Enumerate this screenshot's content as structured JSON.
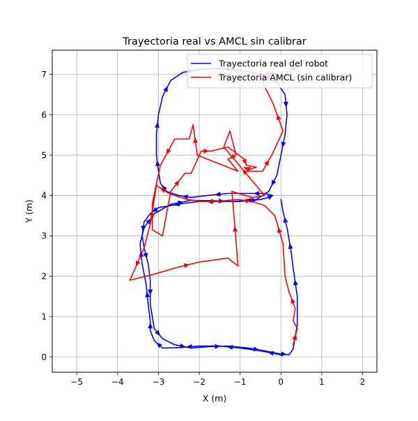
{
  "chart_data": {
    "type": "line",
    "title": "Trayectoria real vs AMCL sin calibrar",
    "xlabel": "X (m)",
    "ylabel": "Y (m)",
    "xlim": [
      -5.6,
      2.35
    ],
    "ylim": [
      -0.38,
      7.6
    ],
    "xticks": [
      -5,
      -4,
      -3,
      -2,
      -1,
      0,
      1,
      2
    ],
    "yticks": [
      0,
      1,
      2,
      3,
      4,
      5,
      6,
      7
    ],
    "xtick_labels": [
      "−5",
      "−4",
      "−3",
      "−2",
      "−1",
      "0",
      "1",
      "2"
    ],
    "ytick_labels": [
      "0",
      "1",
      "2",
      "3",
      "4",
      "5",
      "6",
      "7"
    ],
    "grid": true,
    "legend_position": "top-right",
    "series": [
      {
        "name": "Trayectoria real del robot",
        "color": "#0000ff",
        "x": [
          0.0,
          -0.5,
          -1.0,
          -1.5,
          -2.0,
          -2.5,
          -2.9,
          -3.1,
          -3.2,
          -3.2,
          -3.25,
          -3.3,
          -3.4,
          -3.45,
          -3.35,
          -3.1,
          -2.7,
          -2.2,
          -1.7,
          -1.2,
          -0.8,
          -0.5,
          -0.3,
          -0.2,
          -0.4,
          -0.8,
          -1.3,
          -1.8,
          -2.2,
          -2.5,
          -2.8,
          -2.95,
          -3.0,
          -3.05,
          -3.05,
          -3.0,
          -2.9,
          -2.7,
          -2.4,
          -2.0,
          -1.5,
          -1.0,
          -0.5,
          -0.1,
          0.1,
          0.15,
          0.1,
          0.0,
          -0.1,
          -0.3,
          -0.6,
          -1.0,
          -1.5,
          -2.0,
          -2.4,
          -2.7,
          -3.0,
          -3.2,
          -3.35,
          -3.4,
          -3.35,
          -3.25,
          -3.2,
          -3.2,
          -3.1,
          -2.9,
          -2.6,
          -2.2,
          -1.8,
          -1.3,
          -0.8,
          -0.4,
          -0.05,
          0.2,
          0.3,
          0.4,
          0.4,
          0.3,
          0.25,
          0.2,
          0.15,
          0.05,
          0.0
        ],
        "y": [
          0.05,
          0.15,
          0.22,
          0.27,
          0.27,
          0.23,
          0.22,
          0.4,
          0.65,
          0.9,
          1.3,
          1.8,
          2.3,
          2.8,
          3.2,
          3.55,
          3.78,
          3.88,
          3.87,
          3.85,
          3.87,
          3.9,
          3.95,
          4.0,
          4.05,
          4.05,
          4.05,
          4.0,
          3.95,
          4.0,
          4.1,
          4.3,
          4.6,
          5.0,
          5.5,
          6.0,
          6.45,
          6.85,
          7.05,
          7.12,
          7.15,
          7.1,
          7.0,
          6.8,
          6.5,
          6.0,
          5.5,
          5.0,
          4.5,
          4.1,
          3.9,
          3.85,
          3.85,
          3.85,
          3.8,
          3.75,
          3.7,
          3.55,
          3.35,
          3.0,
          2.7,
          2.3,
          1.9,
          1.3,
          0.7,
          0.45,
          0.3,
          0.22,
          0.25,
          0.27,
          0.22,
          0.15,
          0.08,
          0.05,
          0.2,
          0.8,
          1.5,
          2.2,
          2.6,
          2.9,
          3.2,
          3.6,
          3.9
        ]
      },
      {
        "name": "Trayectoria AMCL (sin calibrar)",
        "color": "#ff0000",
        "x": [
          0.3,
          0.4,
          0.3,
          0.35,
          0.2,
          0.1,
          0.05,
          -0.15,
          -0.4,
          -0.7,
          -1.05,
          -1.3,
          -1.55,
          -1.9,
          -2.3,
          -2.75,
          -3.05,
          -3.2,
          -3.35,
          -3.7,
          -3.1,
          -2.6,
          -2.0,
          -1.3,
          -1.05,
          -1.2,
          -0.7,
          -0.4,
          -1.4,
          -1.25,
          -1.1,
          -1.3,
          -1.05,
          -2.05,
          -2.15,
          -2.25,
          -2.6,
          -2.95,
          -3.05,
          -3.15,
          -3.15,
          -2.9,
          -2.7,
          -2.35,
          -2.2,
          -1.95,
          -1.7,
          -1.3,
          -0.9,
          -0.85,
          -0.6,
          -0.75,
          -0.9,
          -0.8,
          -0.45,
          -0.2,
          0.05,
          0.05,
          -0.2,
          -0.45,
          -0.4,
          -0.15,
          0.05,
          0.1,
          0.15,
          0.2,
          0.25,
          0.45
        ],
        "y": [
          0.3,
          0.7,
          0.9,
          1.2,
          1.6,
          2.0,
          2.8,
          3.5,
          3.75,
          3.85,
          3.9,
          3.88,
          3.85,
          3.85,
          3.9,
          4.05,
          4.25,
          3.3,
          2.7,
          1.9,
          2.05,
          2.2,
          2.35,
          2.45,
          2.25,
          4.1,
          3.95,
          4.0,
          5.2,
          5.6,
          5.0,
          4.9,
          4.6,
          5.0,
          5.75,
          5.4,
          5.4,
          4.75,
          4.3,
          3.8,
          3.15,
          3.0,
          4.1,
          4.55,
          4.55,
          5.1,
          5.1,
          5.2,
          4.9,
          4.75,
          4.7,
          4.65,
          4.7,
          4.6,
          4.6,
          5.05,
          5.6,
          5.6,
          6.3,
          6.8,
          7.0,
          7.05,
          6.8,
          6.9,
          7.1,
          6.95,
          7.1,
          7.2
        ]
      }
    ]
  }
}
